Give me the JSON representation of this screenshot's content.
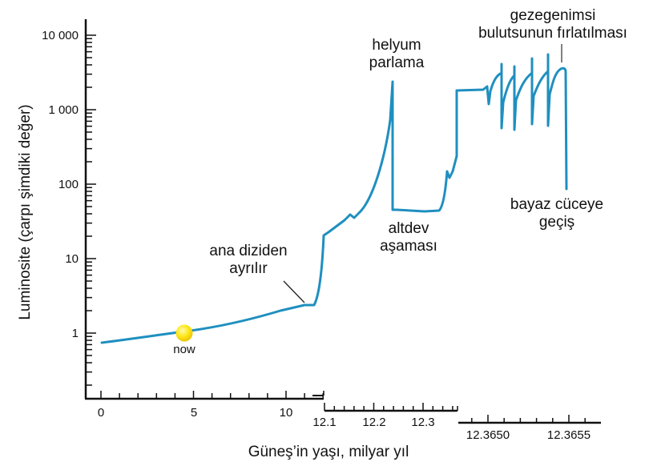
{
  "chart_data": {
    "type": "line",
    "title": "",
    "xlabel": "Güneş'in yaşı, milyar yıl",
    "ylabel": "Luminosite (çarpı şimdiki değer)",
    "yscale": "log",
    "ylim": [
      0.15,
      14000
    ],
    "y_ticks": [
      "1",
      "10",
      "100",
      "1 000",
      "10 000"
    ],
    "grid": false,
    "legend": null,
    "color": "#1f8fbf",
    "panels": [
      {
        "name": "main-sequence",
        "xlim": [
          -0.5,
          11.8
        ],
        "x_ticks": [
          "0",
          "5",
          "10"
        ],
        "x": [
          0,
          1,
          2,
          3,
          4,
          4.6,
          5,
          6,
          7,
          8,
          9,
          10,
          11,
          11.4
        ],
        "y": [
          0.75,
          0.8,
          0.85,
          0.9,
          0.96,
          1.0,
          1.03,
          1.12,
          1.24,
          1.4,
          1.6,
          1.9,
          2.3,
          2.3
        ]
      },
      {
        "name": "red-giant-and-horizontal-branch",
        "xlim": [
          12.1,
          12.37
        ],
        "x_ticks": [
          "12.1",
          "12.2",
          "12.3"
        ],
        "x": [
          12.1,
          12.104,
          12.13,
          12.16,
          12.17,
          12.19,
          12.21,
          12.23,
          12.235,
          12.235,
          12.24,
          12.28,
          12.32,
          12.33,
          12.335,
          12.34,
          12.345,
          12.35,
          12.352
        ],
        "y": [
          2.3,
          20,
          28,
          38,
          35,
          60,
          130,
          500,
          2400,
          42,
          45,
          42,
          48,
          80,
          150,
          120,
          300,
          800,
          1700
        ]
      },
      {
        "name": "thermal-pulses-agb",
        "xlim": [
          12.3643,
          12.3656
        ],
        "x_ticks": [
          "12.3650",
          "12.3655"
        ],
        "x": [
          12.3643,
          12.3647,
          12.3648,
          12.3649,
          12.365,
          12.3652,
          12.3654,
          12.36552
        ],
        "y": [
          1800,
          1900,
          2000,
          3000,
          3200,
          3500,
          3600,
          90
        ],
        "pulses_peak": [
          4000,
          3900,
          4500,
          5500
        ],
        "pulses_trough": [
          550,
          560,
          600,
          560
        ]
      }
    ],
    "annotations": [
      {
        "text": "now",
        "x": 4.6,
        "y": 1.0,
        "marker": "sun"
      },
      {
        "text": "ana diziden ayrılır",
        "x": 11.2,
        "y": 2.3
      },
      {
        "text": "helyum parlama",
        "x": 12.235,
        "y": 2400
      },
      {
        "text": "altdev aşaması",
        "x": 12.26,
        "y": 42
      },
      {
        "text": "gezegenimsi bulutsunun fırlatılması",
        "x": 12.36545,
        "y": 3600
      },
      {
        "text": "bayaz cüceye geçiş",
        "x": 12.36552,
        "y": 90
      }
    ]
  },
  "labels": {
    "y_axis": "Luminosite (çarpı şimdiki değer)",
    "x_axis": "Güneş’in yaşı, milyar yıl",
    "y_ticks": {
      "t10000": "10 000",
      "t1000": "1 000",
      "t100": "100",
      "t10": "10",
      "t1": "1"
    },
    "x_ticks_panel1": {
      "t0": "0",
      "t5": "5",
      "t10": "10"
    },
    "x_ticks_panel2": {
      "t1": "12.1",
      "t2": "12.2",
      "t3": "12.3"
    },
    "x_ticks_panel3": {
      "t1": "12.3650",
      "t2": "12.3655"
    },
    "now": "now",
    "leaves_ms_1": "ana diziden",
    "leaves_ms_2": "ayrılır",
    "he_flash_1": "helyum",
    "he_flash_2": "parlama",
    "subgiant_1": "altdev",
    "subgiant_2": "aşaması",
    "pn_1": "gezegenimsi",
    "pn_2": "bulutsunun fırlatılması",
    "wd_1": "bayaz cüceye",
    "wd_2": "geçiş"
  }
}
